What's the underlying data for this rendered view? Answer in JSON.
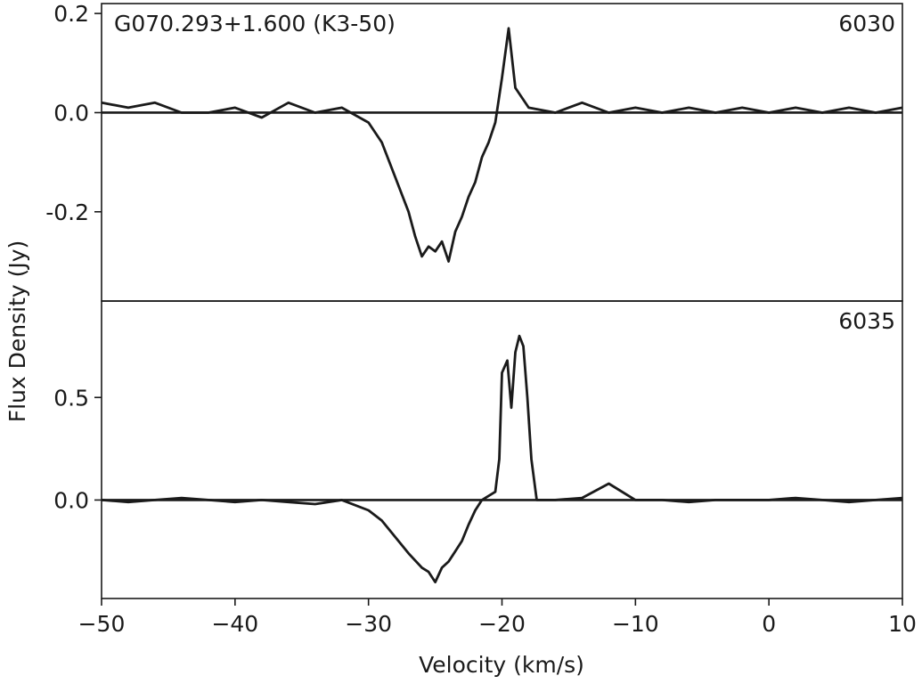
{
  "chart_data": {
    "type": "line",
    "xlabel": "Velocity (km/s)",
    "ylabel": "Flux Density (Jy)",
    "xlim": [
      -50,
      10
    ],
    "xticks": [
      -50,
      -40,
      -30,
      -20,
      -10,
      0,
      10
    ],
    "xtick_labels": [
      "−50",
      "−40",
      "−30",
      "−20",
      "−10",
      "0",
      "10"
    ],
    "shared_x": true,
    "grid": false,
    "panels": [
      {
        "title": "G070.293+1.600 (K3-50)",
        "label": "6030",
        "ylim": [
          -0.38,
          0.22
        ],
        "yticks": [
          -0.2,
          0.0,
          0.2
        ],
        "ytick_labels": [
          "-0.2",
          "0.0",
          "0.2"
        ],
        "baseline": 0.0,
        "series": [
          {
            "x": [
              -50,
              -48,
              -46,
              -44,
              -42,
              -40,
              -38,
              -36,
              -34,
              -32,
              -30,
              -29,
              -28,
              -27,
              -26.5,
              -26,
              -25.5,
              -25,
              -24.5,
              -24,
              -23.5,
              -23,
              -22.5,
              -22,
              -21.5,
              -21,
              -20.5,
              -20,
              -19.5,
              -19,
              -18,
              -16,
              -14,
              -12,
              -10,
              -8,
              -6,
              -4,
              -2,
              0,
              2,
              4,
              6,
              8,
              10
            ],
            "y": [
              0.02,
              0.01,
              0.02,
              0.0,
              0.0,
              0.01,
              -0.01,
              0.02,
              0.0,
              0.01,
              -0.02,
              -0.06,
              -0.13,
              -0.2,
              -0.25,
              -0.29,
              -0.27,
              -0.28,
              -0.26,
              -0.3,
              -0.24,
              -0.21,
              -0.17,
              -0.14,
              -0.09,
              -0.06,
              -0.02,
              0.07,
              0.17,
              0.05,
              0.01,
              0.0,
              0.02,
              0.0,
              0.01,
              0.0,
              0.01,
              0.0,
              0.01,
              0.0,
              0.01,
              0.0,
              0.01,
              0.0,
              0.01
            ]
          }
        ]
      },
      {
        "title": "",
        "label": "6035",
        "ylim": [
          -0.48,
          0.97
        ],
        "yticks": [
          0.0,
          0.5
        ],
        "ytick_labels": [
          "0.0",
          "0.5"
        ],
        "baseline": 0.0,
        "series": [
          {
            "x": [
              -50,
              -48,
              -46,
              -44,
              -42,
              -40,
              -38,
              -36,
              -34,
              -32,
              -30,
              -29,
              -28,
              -27,
              -26,
              -25.5,
              -25,
              -24.5,
              -24,
              -23.5,
              -23,
              -22.5,
              -22,
              -21.5,
              -21,
              -20.5,
              -20.2,
              -20,
              -19.6,
              -19.3,
              -19,
              -18.7,
              -18.4,
              -18.1,
              -17.8,
              -17.4,
              -16,
              -14,
              -12,
              -10,
              -8,
              -6,
              -4,
              -2,
              0,
              2,
              4,
              6,
              8,
              10
            ],
            "y": [
              0.0,
              -0.01,
              0.0,
              0.01,
              0.0,
              -0.01,
              0.0,
              -0.01,
              -0.02,
              0.0,
              -0.05,
              -0.1,
              -0.18,
              -0.26,
              -0.33,
              -0.35,
              -0.4,
              -0.33,
              -0.3,
              -0.25,
              -0.2,
              -0.12,
              -0.05,
              0.0,
              0.02,
              0.04,
              0.2,
              0.62,
              0.68,
              0.45,
              0.72,
              0.8,
              0.75,
              0.5,
              0.2,
              0.0,
              0.0,
              0.01,
              0.08,
              0.0,
              0.0,
              -0.01,
              0.0,
              0.0,
              0.0,
              0.01,
              0.0,
              -0.01,
              0.0,
              0.01
            ]
          }
        ]
      }
    ]
  }
}
